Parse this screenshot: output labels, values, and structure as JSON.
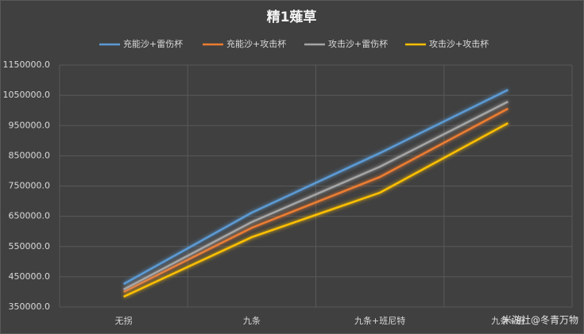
{
  "chart_data": {
    "type": "line",
    "title": "精1薙草",
    "categories": [
      "无拐",
      "九条",
      "九条+班尼特",
      "九条+班"
    ],
    "series": [
      {
        "name": "充能沙+雷伤杯",
        "color": "#5b9bd5",
        "values": [
          426000,
          662000,
          859000,
          1068000
        ]
      },
      {
        "name": "充能沙+攻击杯",
        "color": "#ed7d31",
        "values": [
          400000,
          612000,
          780000,
          1006000
        ]
      },
      {
        "name": "攻击沙+雷伤杯",
        "color": "#a5a5a5",
        "values": [
          408000,
          631000,
          814000,
          1029000
        ]
      },
      {
        "name": "攻击沙+攻击杯",
        "color": "#ffc000",
        "values": [
          384000,
          581000,
          728000,
          958000
        ]
      }
    ],
    "ylim": [
      350000,
      1150000
    ],
    "yticks": [
      {
        "value": 350000,
        "label": "350000.0"
      },
      {
        "value": 450000,
        "label": "450000.0"
      },
      {
        "value": 550000,
        "label": "550000.0"
      },
      {
        "value": 650000,
        "label": "650000.0"
      },
      {
        "value": 750000,
        "label": "750000.0"
      },
      {
        "value": 850000,
        "label": "850000.0"
      },
      {
        "value": 950000,
        "label": "950000.0"
      },
      {
        "value": 1050000,
        "label": "1050000.0"
      },
      {
        "value": 1150000,
        "label": "1150000.0"
      }
    ],
    "grid": true,
    "legend": "top",
    "watermark": "米游社@冬青万物"
  }
}
